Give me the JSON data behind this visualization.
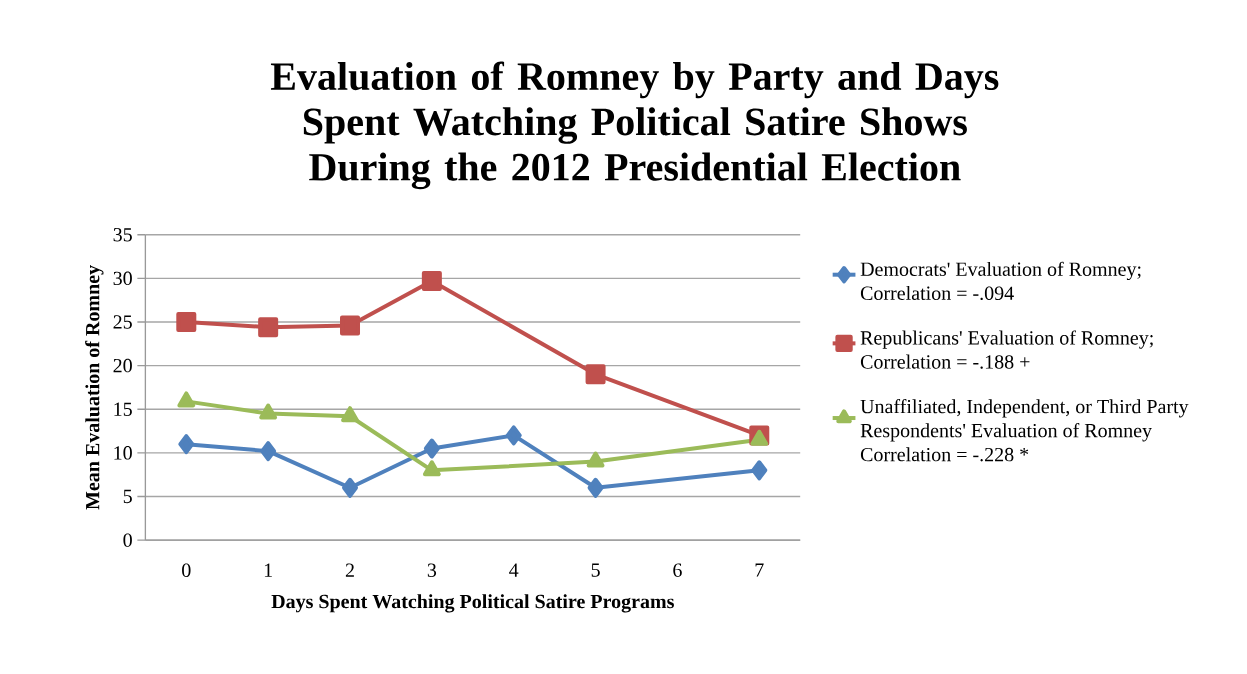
{
  "chart_data": {
    "type": "line",
    "title": "Evaluation of Romney by Party and Days Spent Watching Political Satire Shows During the 2012 Presidential Election",
    "xlabel": "Days Spent Watching Political Satire Programs",
    "ylabel": "Mean Evaluation of Romney",
    "categories": [
      "0",
      "1",
      "2",
      "3",
      "4",
      "5",
      "6",
      "7"
    ],
    "series": [
      {
        "name": "Democrats' Evaluation of Romney; Correlation = -.094",
        "color": "#4f81bd",
        "marker": "diamond",
        "values": [
          11,
          10.2,
          6,
          10.5,
          12,
          6,
          null,
          8
        ]
      },
      {
        "name": "Republicans' Evaluation of Romney; Correlation = -.188 +",
        "color": "#c0504d",
        "marker": "square",
        "values": [
          25,
          24.4,
          24.6,
          29.7,
          null,
          19,
          null,
          12
        ]
      },
      {
        "name": "Unaffiliated, Independent, or Third Party Respondents' Evaluation of Romney Correlation = -.228 *",
        "color": "#9bbb59",
        "marker": "triangle",
        "values": [
          15.9,
          14.5,
          14.2,
          8,
          null,
          9,
          null,
          11.5
        ]
      }
    ],
    "ylim": [
      0,
      35
    ],
    "yticks": [
      0,
      5,
      10,
      15,
      20,
      25,
      30,
      35
    ],
    "grid": "y",
    "legend": "right",
    "line_style": "solid"
  }
}
